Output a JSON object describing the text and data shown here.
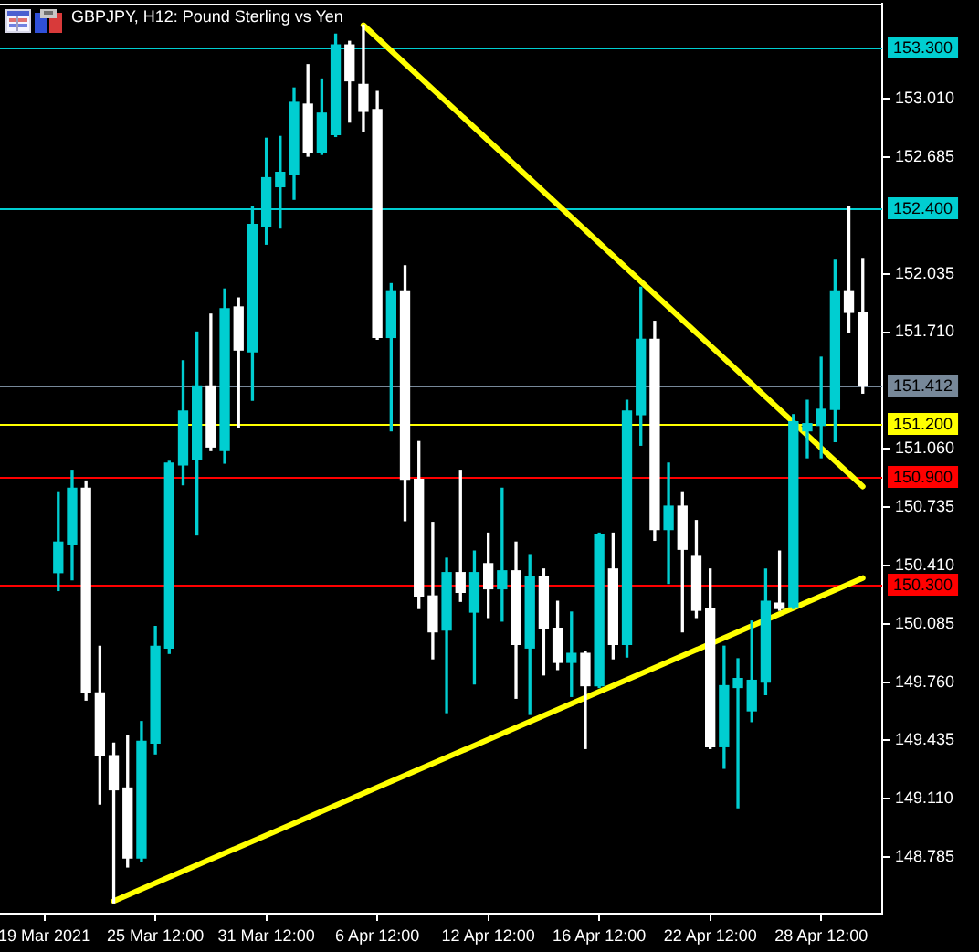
{
  "chart_data": {
    "type": "candlestick",
    "title": "GBPJPY, H12: Pound Sterling vs Yen",
    "categories": [
      "19 Mar 2021",
      null,
      null,
      null,
      null,
      null,
      null,
      null,
      "25 Mar 12:00",
      null,
      null,
      null,
      null,
      null,
      null,
      null,
      "31 Mar 12:00",
      null,
      null,
      null,
      null,
      null,
      null,
      null,
      "6 Apr 12:00",
      null,
      null,
      null,
      null,
      null,
      null,
      null,
      "12 Apr 12:00",
      null,
      null,
      null,
      null,
      null,
      null,
      null,
      "16 Apr 12:00",
      null,
      null,
      null,
      null,
      null,
      null,
      null,
      "22 Apr 12:00",
      null,
      null,
      null,
      null,
      null,
      null,
      null,
      "28 Apr 12:00",
      null,
      null,
      null
    ],
    "ohlc": [
      null,
      [
        150.37,
        150.82,
        150.27,
        150.54
      ],
      [
        150.53,
        150.94,
        150.33,
        150.84
      ],
      [
        150.84,
        150.88,
        149.66,
        149.7
      ],
      [
        149.7,
        149.96,
        149.08,
        149.35
      ],
      [
        149.35,
        149.42,
        148.53,
        149.16
      ],
      [
        149.17,
        149.46,
        148.73,
        148.78
      ],
      [
        148.78,
        149.54,
        148.76,
        149.43
      ],
      [
        149.42,
        150.07,
        149.36,
        149.96
      ],
      [
        149.95,
        150.99,
        149.92,
        150.98
      ],
      [
        150.97,
        151.55,
        150.86,
        151.27
      ],
      [
        151.0,
        151.71,
        150.58,
        151.41
      ],
      [
        151.41,
        151.81,
        151.05,
        151.07
      ],
      [
        151.05,
        151.95,
        150.98,
        151.84
      ],
      [
        151.85,
        151.9,
        151.18,
        151.61
      ],
      [
        151.6,
        152.41,
        151.33,
        152.31
      ],
      [
        152.3,
        152.79,
        152.2,
        152.57
      ],
      [
        152.52,
        152.8,
        152.29,
        152.6
      ],
      [
        152.59,
        153.07,
        152.45,
        152.99
      ],
      [
        152.98,
        153.2,
        152.69,
        152.71
      ],
      [
        152.71,
        153.12,
        152.7,
        152.93
      ],
      [
        152.81,
        153.37,
        152.8,
        153.31
      ],
      [
        153.31,
        153.33,
        152.88,
        153.11
      ],
      [
        153.09,
        153.42,
        152.83,
        152.94
      ],
      [
        152.95,
        153.05,
        151.67,
        151.68
      ],
      [
        151.68,
        151.98,
        151.16,
        151.94
      ],
      [
        151.94,
        152.08,
        150.66,
        150.89
      ],
      [
        150.89,
        151.1,
        150.17,
        150.24
      ],
      [
        150.24,
        150.65,
        149.89,
        150.04
      ],
      [
        150.05,
        150.45,
        149.59,
        150.37
      ],
      [
        150.37,
        150.94,
        150.21,
        150.26
      ],
      [
        150.15,
        150.49,
        149.75,
        150.37
      ],
      [
        150.42,
        150.59,
        150.12,
        150.28
      ],
      [
        150.28,
        150.84,
        150.1,
        150.38
      ],
      [
        150.38,
        150.54,
        149.67,
        149.97
      ],
      [
        149.95,
        150.47,
        149.58,
        150.35
      ],
      [
        150.35,
        150.39,
        149.8,
        150.06
      ],
      [
        150.06,
        150.21,
        149.83,
        149.87
      ],
      [
        149.87,
        150.15,
        149.68,
        149.92
      ],
      [
        149.92,
        149.93,
        149.39,
        149.74
      ],
      [
        149.74,
        150.59,
        149.73,
        150.58
      ],
      [
        150.39,
        150.59,
        149.89,
        149.97
      ],
      [
        149.97,
        151.33,
        149.9,
        151.27
      ],
      [
        151.25,
        151.96,
        151.08,
        151.67
      ],
      [
        151.67,
        151.77,
        150.55,
        150.61
      ],
      [
        150.61,
        150.98,
        150.31,
        150.74
      ],
      [
        150.74,
        150.82,
        150.04,
        150.5
      ],
      [
        150.46,
        150.66,
        150.12,
        150.16
      ],
      [
        150.17,
        150.39,
        149.39,
        149.4
      ],
      [
        149.4,
        149.96,
        149.28,
        149.74
      ],
      [
        149.73,
        149.89,
        149.06,
        149.78
      ],
      [
        149.6,
        150.1,
        149.54,
        149.77
      ],
      [
        149.76,
        150.39,
        149.69,
        150.21
      ],
      [
        150.2,
        150.49,
        150.16,
        150.17
      ],
      [
        150.18,
        151.25,
        150.17,
        151.21
      ],
      [
        151.16,
        151.33,
        151.01,
        151.2
      ],
      [
        151.19,
        151.57,
        151.01,
        151.28
      ],
      [
        151.28,
        152.11,
        151.1,
        151.94
      ],
      [
        151.94,
        152.41,
        151.71,
        151.82
      ],
      [
        151.82,
        152.12,
        151.37,
        151.41
      ]
    ],
    "colors": [
      null,
      "#00ced1",
      "#00ced1",
      "#ffffff",
      "#ffffff",
      "#ffffff",
      "#ffffff",
      "#00ced1",
      "#00ced1",
      "#00ced1",
      "#00ced1",
      "#00ced1",
      "#ffffff",
      "#00ced1",
      "#ffffff",
      "#00ced1",
      "#00ced1",
      "#00ced1",
      "#00ced1",
      "#ffffff",
      "#00ced1",
      "#00ced1",
      "#ffffff",
      "#ffffff",
      "#ffffff",
      "#00ced1",
      "#ffffff",
      "#ffffff",
      "#ffffff",
      "#00ced1",
      "#ffffff",
      "#00ced1",
      "#ffffff",
      "#00ced1",
      "#ffffff",
      "#00ced1",
      "#ffffff",
      "#ffffff",
      "#00ced1",
      "#ffffff",
      "#00ced1",
      "#ffffff",
      "#00ced1",
      "#00ced1",
      "#ffffff",
      "#00ced1",
      "#ffffff",
      "#ffffff",
      "#ffffff",
      "#00ced1",
      "#00ced1",
      "#00ced1",
      "#00ced1",
      "#ffffff",
      "#00ced1",
      "#00ced1",
      "#00ced1",
      "#00ced1",
      "#ffffff",
      "#ffffff"
    ],
    "series": [
      {
        "type": "line",
        "color": "#ffff00",
        "values": [
          null,
          null,
          null,
          null,
          null,
          null,
          null,
          null,
          null,
          null,
          null,
          null,
          null,
          null,
          null,
          null,
          null,
          null,
          null,
          null,
          null,
          null,
          null,
          153.42,
          null,
          null,
          null,
          null,
          null,
          null,
          null,
          null,
          null,
          null,
          null,
          null,
          null,
          null,
          null,
          null,
          null,
          null,
          null,
          null,
          null,
          null,
          null,
          null,
          null,
          null,
          null,
          null,
          null,
          null,
          null,
          null,
          null,
          null,
          null,
          150.85
        ]
      },
      {
        "type": "line",
        "color": "#ffff00",
        "values": [
          null,
          null,
          null,
          null,
          null,
          148.54,
          null,
          null,
          null,
          null,
          null,
          null,
          null,
          null,
          null,
          null,
          null,
          null,
          null,
          null,
          null,
          null,
          null,
          null,
          null,
          null,
          null,
          null,
          null,
          null,
          null,
          null,
          null,
          null,
          null,
          null,
          null,
          null,
          null,
          null,
          null,
          null,
          null,
          null,
          null,
          null,
          null,
          null,
          null,
          null,
          null,
          null,
          null,
          null,
          null,
          null,
          null,
          null,
          null,
          150.34
        ]
      }
    ],
    "ylim": [
      148.47,
      153.54
    ],
    "yticks": [
      {
        "value": 153.01,
        "label": "153.010"
      },
      152.685,
      152.035,
      {
        "value": 151.71,
        "label": "151.710"
      },
      {
        "value": 151.06,
        "label": "151.060"
      },
      150.735,
      {
        "value": 150.41,
        "label": "150.410"
      },
      150.085,
      {
        "value": 149.76,
        "label": "149.760"
      },
      149.435,
      {
        "value": 149.11,
        "label": "149.110"
      },
      148.785
    ],
    "ref_lines": [
      {
        "axis": "y",
        "value": 153.3,
        "label": "153.300",
        "color": "#00ced1"
      },
      {
        "axis": "y",
        "value": 152.4,
        "label": "152.400",
        "color": "#00ced1"
      },
      {
        "axis": "y",
        "value": 151.412,
        "label": "151.412",
        "color": "#778899"
      },
      {
        "axis": "y",
        "value": 151.2,
        "label": "151.200",
        "color": "#ffff00"
      },
      {
        "axis": "y",
        "value": 150.9,
        "label": "150.900",
        "color": "#ff0000"
      },
      {
        "axis": "y",
        "value": 150.3,
        "label": "150.300",
        "color": "#ff0000"
      }
    ]
  }
}
